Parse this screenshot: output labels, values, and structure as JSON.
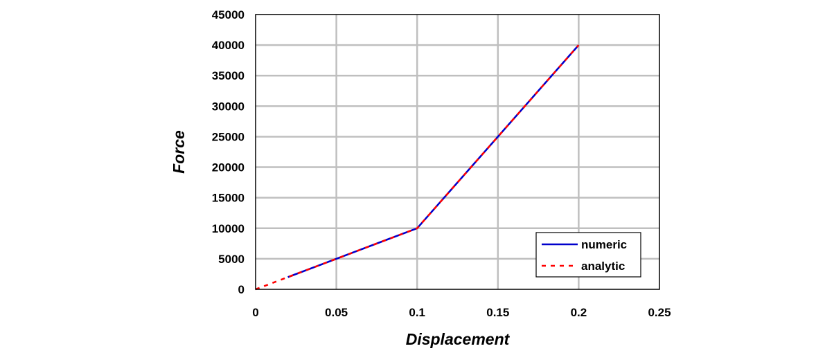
{
  "chart_data": {
    "type": "line",
    "title": "",
    "xlabel": "Displacement",
    "ylabel": "Force",
    "xlim": [
      0,
      0.25
    ],
    "ylim": [
      0,
      45000
    ],
    "grid": true,
    "legend_position": "bottom-right",
    "x_ticks": [
      0,
      0.05,
      0.1,
      0.15,
      0.2,
      0.25
    ],
    "x_tick_labels": [
      "0",
      "0.05",
      "0.1",
      "0.15",
      "0.2",
      "0.25"
    ],
    "y_ticks": [
      0,
      5000,
      10000,
      15000,
      20000,
      25000,
      30000,
      35000,
      40000,
      45000
    ],
    "y_tick_labels": [
      "0",
      "5000",
      "10000",
      "15000",
      "20000",
      "25000",
      "30000",
      "35000",
      "40000",
      "45000"
    ],
    "series": [
      {
        "name": "numeric",
        "color": "#0000cc",
        "style": "solid",
        "x": [
          0.02,
          0.08,
          0.1,
          0.2
        ],
        "y": [
          2000,
          8000,
          10000,
          40000
        ]
      },
      {
        "name": "analytic",
        "color": "#ff0000",
        "style": "dashed",
        "x": [
          0,
          0.1,
          0.2
        ],
        "y": [
          0,
          10000,
          40000
        ]
      }
    ]
  }
}
